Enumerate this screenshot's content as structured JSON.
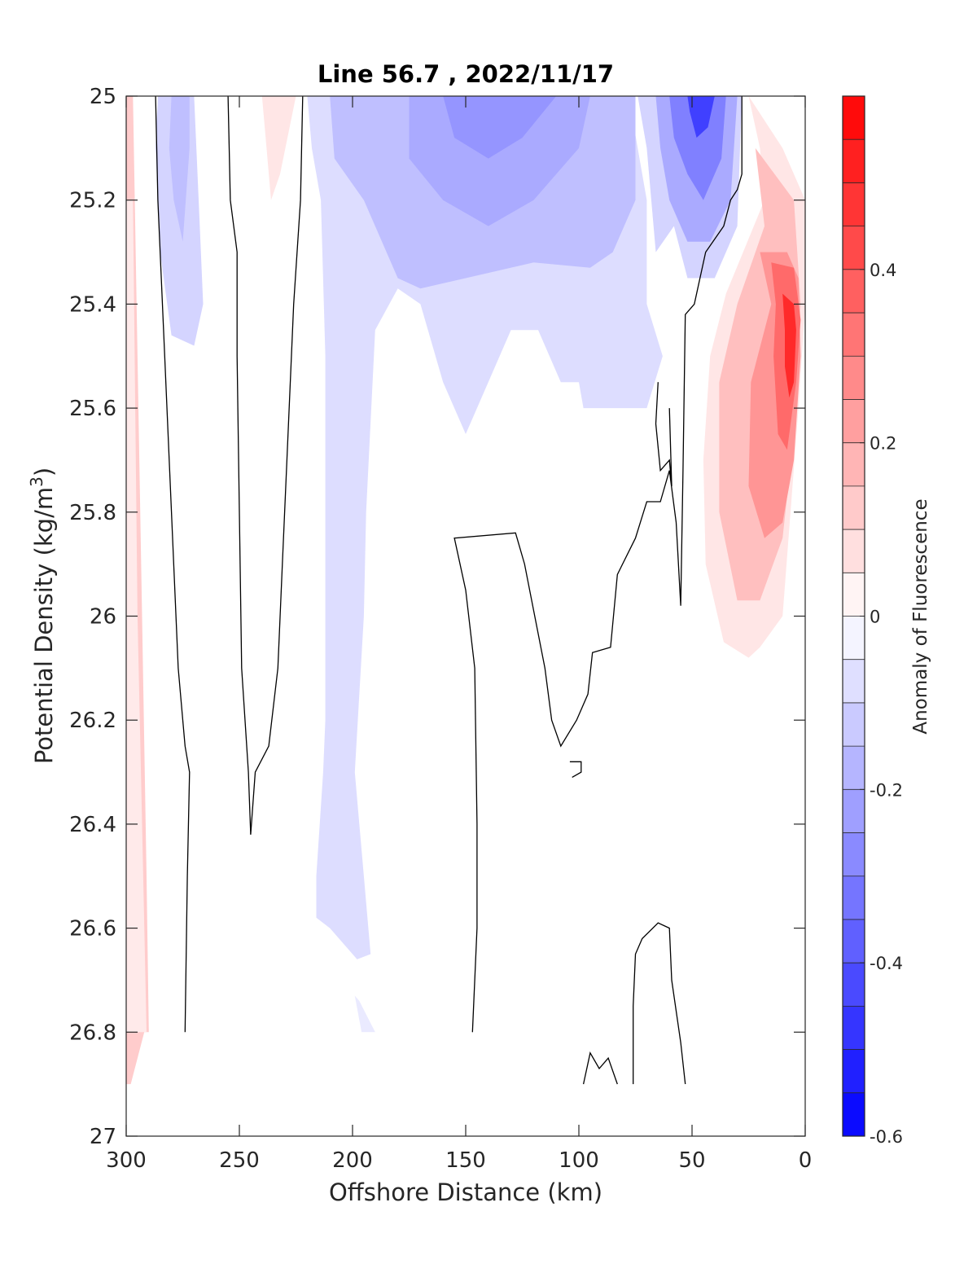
{
  "chart_data": {
    "type": "contour",
    "title": "Line 56.7 , 2022/11/17",
    "xlabel": "Offshore Distance (km)",
    "ylabel_main": "Potential Density (kg/m",
    "ylabel_sup": "3",
    "ylabel_close": ")",
    "xlim": [
      300,
      0
    ],
    "ylim": [
      25,
      27
    ],
    "y_reversed": true,
    "x_ticks": [
      300,
      250,
      200,
      150,
      100,
      50,
      0
    ],
    "x_tick_labels": [
      "300",
      "250",
      "200",
      "150",
      "100",
      "50",
      "0"
    ],
    "y_ticks": [
      25,
      25.2,
      25.4,
      25.6,
      25.8,
      26,
      26.2,
      26.4,
      26.6,
      26.8,
      27
    ],
    "y_tick_labels": [
      "25",
      "25.2",
      "25.4",
      "25.6",
      "25.8",
      "26",
      "26.2",
      "26.4",
      "26.6",
      "26.8",
      "27"
    ],
    "colorbar": {
      "label": "Anomaly of Fluorescence",
      "limits": [
        -0.6,
        0.6
      ],
      "levels": [
        -0.6,
        -0.55,
        -0.5,
        -0.45,
        -0.4,
        -0.35,
        -0.3,
        -0.25,
        -0.2,
        -0.15,
        -0.1,
        -0.05,
        0,
        0.05,
        0.1,
        0.15,
        0.2,
        0.25,
        0.3,
        0.35,
        0.4,
        0.45,
        0.5,
        0.55,
        0.6
      ],
      "ticks": [
        -0.6,
        -0.4,
        -0.2,
        0,
        0.2,
        0.4
      ],
      "tick_labels": [
        "-0.6",
        "-0.4",
        "-0.2",
        "0",
        "0.2",
        "0.4"
      ],
      "colormap": "blue-white-red",
      "min_color": "#0000ff",
      "max_color": "#ff0000"
    },
    "regions": [
      {
        "value": 0.12,
        "points": [
          [
            300,
            25
          ],
          [
            297,
            25
          ],
          [
            295,
            25.5
          ],
          [
            293,
            26.0
          ],
          [
            291,
            26.5
          ],
          [
            290,
            26.8
          ],
          [
            292,
            26.8
          ],
          [
            298,
            26.9
          ],
          [
            300,
            26.9
          ]
        ]
      },
      {
        "value": 0.05,
        "points": [
          [
            300,
            25.2
          ],
          [
            297,
            25.2
          ],
          [
            296,
            25.6
          ],
          [
            295,
            26
          ],
          [
            293,
            26.4
          ],
          [
            291,
            26.8
          ],
          [
            300,
            26.8
          ]
        ]
      },
      {
        "value": -0.1,
        "points": [
          [
            286,
            25
          ],
          [
            270,
            25
          ],
          [
            268,
            25.2
          ],
          [
            266,
            25.4
          ],
          [
            270,
            25.48
          ],
          [
            280,
            25.46
          ],
          [
            285,
            25.3
          ],
          [
            287,
            25.1
          ]
        ]
      },
      {
        "value": -0.15,
        "points": [
          [
            280,
            25
          ],
          [
            272,
            25
          ],
          [
            272,
            25.1
          ],
          [
            275,
            25.28
          ],
          [
            279,
            25.2
          ],
          [
            281,
            25.1
          ]
        ]
      },
      {
        "value": 0.06,
        "points": [
          [
            240,
            25
          ],
          [
            225,
            25
          ],
          [
            232,
            25.15
          ],
          [
            236,
            25.2
          ],
          [
            238,
            25.1
          ]
        ]
      },
      {
        "value": -0.08,
        "points": [
          [
            220,
            25
          ],
          [
            77,
            25
          ],
          [
            76,
            25.05
          ],
          [
            70,
            25.2
          ],
          [
            70,
            25.4
          ],
          [
            63,
            25.5
          ],
          [
            70,
            25.6
          ],
          [
            98,
            25.6
          ],
          [
            100,
            25.55
          ],
          [
            108,
            25.55
          ],
          [
            118,
            25.45
          ],
          [
            130,
            25.45
          ],
          [
            150,
            25.65
          ],
          [
            160,
            25.55
          ],
          [
            170,
            25.4
          ],
          [
            180,
            25.37
          ],
          [
            190,
            25.45
          ],
          [
            194,
            25.8
          ],
          [
            195,
            26.0
          ],
          [
            199,
            26.3
          ],
          [
            195,
            26.5
          ],
          [
            192,
            26.65
          ],
          [
            198,
            26.66
          ],
          [
            210,
            26.6
          ],
          [
            216,
            26.58
          ],
          [
            216,
            26.5
          ],
          [
            213,
            26.3
          ],
          [
            212,
            26.2
          ],
          [
            212,
            25.5
          ],
          [
            214,
            25.2
          ],
          [
            218,
            25.1
          ]
        ]
      },
      {
        "value": -0.05,
        "points": [
          [
            197,
            26.74
          ],
          [
            190,
            26.8
          ],
          [
            196,
            26.8
          ],
          [
            199,
            26.73
          ]
        ]
      },
      {
        "value": -0.15,
        "points": [
          [
            210,
            25
          ],
          [
            75,
            25
          ],
          [
            75,
            25.2
          ],
          [
            85,
            25.3
          ],
          [
            95,
            25.33
          ],
          [
            120,
            25.32
          ],
          [
            150,
            25.35
          ],
          [
            170,
            25.37
          ],
          [
            180,
            25.35
          ],
          [
            195,
            25.2
          ],
          [
            208,
            25.12
          ]
        ]
      },
      {
        "value": -0.2,
        "points": [
          [
            175,
            25
          ],
          [
            95,
            25
          ],
          [
            100,
            25.1
          ],
          [
            120,
            25.2
          ],
          [
            140,
            25.25
          ],
          [
            160,
            25.2
          ],
          [
            175,
            25.12
          ]
        ]
      },
      {
        "value": -0.25,
        "points": [
          [
            160,
            25
          ],
          [
            110,
            25
          ],
          [
            125,
            25.08
          ],
          [
            140,
            25.12
          ],
          [
            155,
            25.08
          ]
        ]
      },
      {
        "value": -0.1,
        "points": [
          [
            74,
            25
          ],
          [
            28,
            25
          ],
          [
            30,
            25.25
          ],
          [
            40,
            25.35
          ],
          [
            52,
            25.35
          ],
          [
            58,
            25.25
          ],
          [
            66,
            25.3
          ],
          [
            70,
            25.1
          ]
        ]
      },
      {
        "value": -0.2,
        "points": [
          [
            66,
            25
          ],
          [
            30,
            25
          ],
          [
            33,
            25.2
          ],
          [
            42,
            25.28
          ],
          [
            52,
            25.28
          ],
          [
            60,
            25.2
          ],
          [
            64,
            25.1
          ]
        ]
      },
      {
        "value": -0.3,
        "points": [
          [
            60,
            25
          ],
          [
            35,
            25
          ],
          [
            37,
            25.12
          ],
          [
            45,
            25.2
          ],
          [
            52,
            25.15
          ],
          [
            58,
            25.08
          ]
        ]
      },
      {
        "value": -0.45,
        "points": [
          [
            52,
            25
          ],
          [
            40,
            25
          ],
          [
            43,
            25.06
          ],
          [
            48,
            25.08
          ],
          [
            51,
            25.03
          ]
        ]
      },
      {
        "value": 0.06,
        "points": [
          [
            25,
            25
          ],
          [
            20,
            25.1
          ],
          [
            18,
            25.2
          ],
          [
            35,
            25.38
          ],
          [
            42,
            25.5
          ],
          [
            45,
            25.7
          ],
          [
            44,
            25.9
          ],
          [
            36,
            26.05
          ],
          [
            25,
            26.08
          ],
          [
            20,
            26.06
          ],
          [
            10,
            26
          ],
          [
            3,
            25.6
          ],
          [
            0,
            25.4
          ],
          [
            0,
            25.2
          ],
          [
            10,
            25.1
          ]
        ]
      },
      {
        "value": 0.15,
        "points": [
          [
            22,
            25.1
          ],
          [
            18,
            25.25
          ],
          [
            30,
            25.4
          ],
          [
            38,
            25.55
          ],
          [
            38,
            25.8
          ],
          [
            30,
            25.97
          ],
          [
            20,
            25.97
          ],
          [
            10,
            25.85
          ],
          [
            5,
            25.65
          ],
          [
            2,
            25.4
          ],
          [
            5,
            25.2
          ]
        ]
      },
      {
        "value": 0.25,
        "points": [
          [
            20,
            25.3
          ],
          [
            15,
            25.4
          ],
          [
            24,
            25.55
          ],
          [
            25,
            25.75
          ],
          [
            18,
            25.85
          ],
          [
            10,
            25.82
          ],
          [
            5,
            25.7
          ],
          [
            2,
            25.5
          ],
          [
            3,
            25.35
          ],
          [
            8,
            25.3
          ]
        ]
      },
      {
        "value": 0.35,
        "points": [
          [
            15,
            25.32
          ],
          [
            13,
            25.4
          ],
          [
            14,
            25.5
          ],
          [
            12,
            25.65
          ],
          [
            8,
            25.68
          ],
          [
            4,
            25.55
          ],
          [
            2,
            25.43
          ],
          [
            5,
            25.33
          ]
        ]
      },
      {
        "value": 0.5,
        "points": [
          [
            10,
            25.38
          ],
          [
            9,
            25.45
          ],
          [
            9,
            25.52
          ],
          [
            7,
            25.58
          ],
          [
            5,
            25.55
          ],
          [
            4,
            25.45
          ],
          [
            5,
            25.4
          ]
        ]
      }
    ],
    "contour_lines": [
      [
        [
          287,
          25
        ],
        [
          286,
          25.2
        ],
        [
          283,
          25.5
        ],
        [
          280,
          25.8
        ],
        [
          277,
          26.1
        ],
        [
          274,
          26.25
        ],
        [
          272,
          26.3
        ],
        [
          273,
          26.5
        ],
        [
          274,
          26.8
        ]
      ],
      [
        [
          255,
          25
        ],
        [
          254,
          25.2
        ],
        [
          251,
          25.3
        ],
        [
          251,
          25.5
        ],
        [
          250,
          25.8
        ],
        [
          249,
          26.1
        ],
        [
          246,
          26.3
        ],
        [
          245,
          26.42
        ]
      ],
      [
        [
          222,
          25
        ],
        [
          223,
          25.2
        ],
        [
          226,
          25.4
        ],
        [
          229,
          25.7
        ],
        [
          231,
          25.9
        ],
        [
          233,
          26.1
        ],
        [
          237,
          26.25
        ],
        [
          243,
          26.3
        ],
        [
          245,
          26.42
        ]
      ],
      [
        [
          147,
          26.8
        ],
        [
          145,
          26.6
        ],
        [
          145,
          26.4
        ],
        [
          146,
          26.1
        ],
        [
          150,
          25.95
        ],
        [
          155,
          25.85
        ],
        [
          128,
          25.84
        ],
        [
          124,
          25.9
        ],
        [
          115,
          26.1
        ],
        [
          112,
          26.2
        ],
        [
          108,
          26.25
        ],
        [
          101,
          26.2
        ],
        [
          96,
          26.15
        ],
        [
          94,
          26.07
        ],
        [
          86,
          26.06
        ],
        [
          83,
          25.92
        ],
        [
          75,
          25.85
        ],
        [
          70,
          25.78
        ],
        [
          64,
          25.78
        ],
        [
          60,
          25.72
        ],
        [
          57,
          25.82
        ],
        [
          55,
          25.98
        ],
        [
          54,
          25.72
        ],
        [
          53,
          25.42
        ],
        [
          49,
          25.4
        ],
        [
          44,
          25.3
        ],
        [
          36,
          25.25
        ],
        [
          33,
          25.2
        ],
        [
          30,
          25.18
        ],
        [
          28,
          25.15
        ],
        [
          28,
          25
        ]
      ],
      [
        [
          65,
          25.55
        ],
        [
          66,
          25.63
        ],
        [
          64,
          25.72
        ],
        [
          60,
          25.7
        ],
        [
          59,
          25.75
        ],
        [
          60,
          25.6
        ]
      ],
      [
        [
          104,
          26.28
        ],
        [
          99,
          26.28
        ],
        [
          99,
          26.3
        ],
        [
          103,
          26.31
        ]
      ],
      [
        [
          98,
          26.9
        ],
        [
          95,
          26.84
        ],
        [
          91,
          26.87
        ],
        [
          87,
          26.85
        ],
        [
          83,
          26.9
        ]
      ],
      [
        [
          76,
          26.9
        ],
        [
          76,
          26.75
        ],
        [
          75,
          26.65
        ],
        [
          72,
          26.62
        ],
        [
          65,
          26.59
        ],
        [
          60,
          26.6
        ],
        [
          59,
          26.7
        ],
        [
          55,
          26.82
        ],
        [
          53,
          26.9
        ]
      ]
    ]
  }
}
